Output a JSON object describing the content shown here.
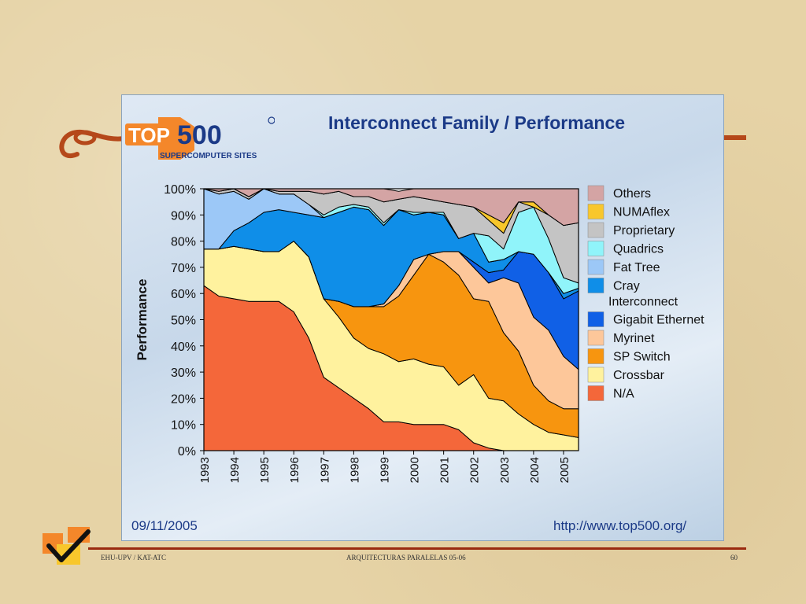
{
  "slide": {
    "footer_left": "EHU-UPV / KAT-ATC",
    "footer_center": "ARQUITECTURAS  PARALELAS   05-06",
    "footer_right": "60"
  },
  "panel": {
    "logo_text": "TOP500",
    "logo_sub": "SUPERCOMPUTER SITES",
    "date": "09/11/2005",
    "url": "http://www.top500.org/"
  },
  "chart_data": {
    "type": "area",
    "title": "Interconnect Family / Performance",
    "ylabel": "Performance",
    "xlabel": "",
    "ylim": [
      0,
      100
    ],
    "yticks": [
      "0%",
      "10%",
      "20%",
      "30%",
      "40%",
      "50%",
      "60%",
      "70%",
      "80%",
      "90%",
      "100%"
    ],
    "x": [
      1993,
      1993.5,
      1994,
      1994.5,
      1995,
      1995.5,
      1996,
      1996.5,
      1997,
      1997.5,
      1998,
      1998.5,
      1999,
      1999.5,
      2000,
      2000.5,
      2001,
      2001.5,
      2002,
      2002.5,
      2003,
      2003.5,
      2004,
      2004.5,
      2005,
      2005.5
    ],
    "xticks": [
      "1993",
      "1994",
      "1995",
      "1996",
      "1997",
      "1998",
      "1999",
      "2000",
      "2001",
      "2002",
      "2003",
      "2004",
      "2005"
    ],
    "legend_position": "right",
    "series": [
      {
        "name": "N/A",
        "color": "#f4673a",
        "values": [
          63,
          59,
          58,
          57,
          57,
          57,
          53,
          43,
          28,
          24,
          20,
          16,
          11,
          11,
          10,
          10,
          10,
          8,
          3,
          1,
          0,
          0,
          0,
          0,
          0,
          0
        ]
      },
      {
        "name": "Crossbar",
        "color": "#fff29e",
        "values": [
          14,
          18,
          20,
          20,
          19,
          19,
          27,
          31,
          30,
          27,
          23,
          23,
          26,
          23,
          25,
          23,
          22,
          17,
          26,
          19,
          19,
          14,
          10,
          7,
          6,
          5
        ]
      },
      {
        "name": "SP Switch",
        "color": "#f7950f",
        "values": [
          0,
          0,
          0,
          0,
          0,
          0,
          0,
          0,
          0,
          6,
          12,
          16,
          18,
          25,
          32,
          42,
          40,
          42,
          29,
          37,
          26,
          24,
          15,
          12,
          10,
          11
        ]
      },
      {
        "name": "Myrinet",
        "color": "#fdc79a",
        "values": [
          0,
          0,
          0,
          0,
          0,
          0,
          0,
          0,
          0,
          0,
          0,
          0,
          1,
          4,
          6,
          0,
          4,
          9,
          12,
          7,
          21,
          26,
          26,
          27,
          20,
          15
        ]
      },
      {
        "name": "Gigabit Ethernet",
        "color": "#1060e6",
        "values": [
          0,
          0,
          0,
          0,
          0,
          0,
          0,
          0,
          0,
          0,
          0,
          0,
          0,
          0,
          0,
          0,
          0,
          0,
          2,
          4,
          3,
          12,
          24,
          22,
          22,
          30
        ]
      },
      {
        "name": "Cray Interconnect",
        "color": "#0f8ee8",
        "values": [
          0,
          0,
          6,
          10,
          15,
          16,
          11,
          16,
          31,
          34,
          38,
          37,
          30,
          29,
          17,
          16,
          14,
          5,
          11,
          4,
          4,
          0,
          0,
          0,
          2,
          1
        ]
      },
      {
        "name": "Fat Tree",
        "color": "#9cc8f7",
        "values": [
          23,
          21,
          15,
          9,
          9,
          6,
          7,
          4,
          0,
          0,
          0,
          0,
          0,
          0,
          0,
          0,
          0,
          0,
          0,
          0,
          0,
          0,
          0,
          0,
          0,
          0
        ]
      },
      {
        "name": "Quadrics",
        "color": "#90f4fa",
        "values": [
          0,
          0,
          0,
          0,
          0,
          0,
          0,
          0,
          1,
          2,
          1,
          1,
          1,
          0,
          1,
          0,
          1,
          0,
          0,
          10,
          4,
          15,
          18,
          13,
          6,
          2
        ]
      },
      {
        "name": "Proprietary",
        "color": "#c4c4c4",
        "values": [
          0,
          1,
          1,
          1,
          0,
          1,
          1,
          5,
          8,
          6,
          3,
          4,
          8,
          4,
          6,
          5,
          4,
          13,
          10,
          6,
          6,
          4,
          0,
          9,
          20,
          23
        ]
      },
      {
        "name": "NUMAflex",
        "color": "#f8c72c",
        "values": [
          0,
          0,
          0,
          0,
          0,
          0,
          0,
          0,
          0,
          0,
          0,
          0,
          0,
          0,
          0,
          0,
          0,
          0,
          0,
          2,
          4,
          0,
          2,
          0,
          0,
          0
        ]
      },
      {
        "name": "Others",
        "color": "#d4a4a4",
        "values": [
          0,
          1,
          0,
          3,
          0,
          1,
          1,
          1,
          2,
          1,
          3,
          3,
          5,
          3,
          3,
          4,
          5,
          6,
          7,
          10,
          13,
          5,
          5,
          10,
          14,
          13
        ]
      }
    ]
  }
}
